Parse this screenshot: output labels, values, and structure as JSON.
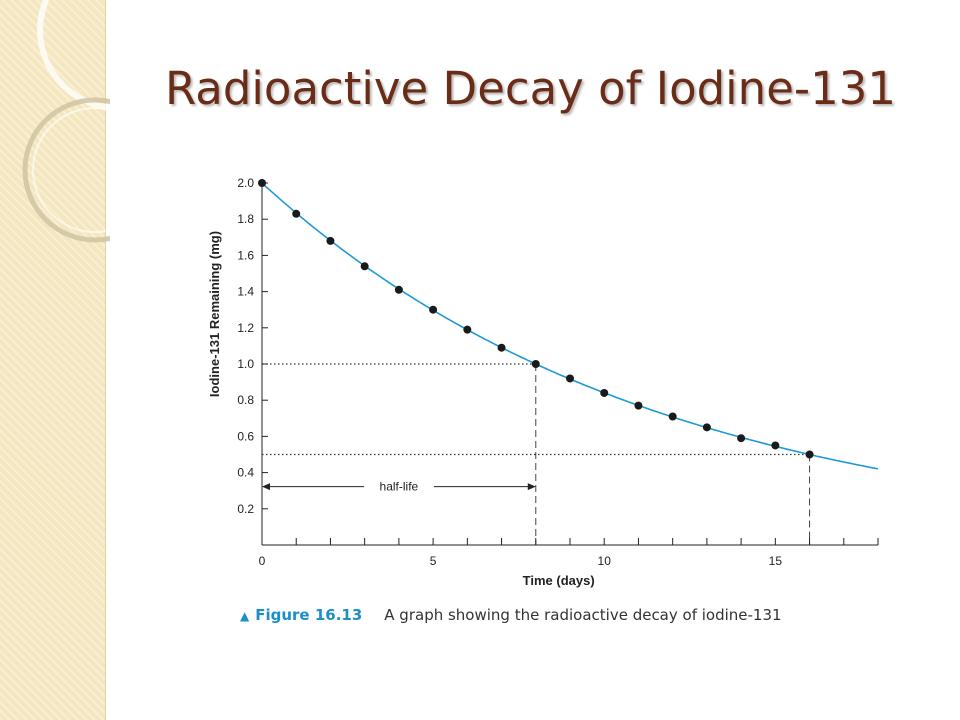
{
  "slide": {
    "title": "Radioactive Decay of Iodine-131",
    "accent_color": "#6b2c17",
    "side_panel_color": "#f4e7bf"
  },
  "chart_data": {
    "type": "scatter",
    "title": "",
    "xlabel": "Time (days)",
    "ylabel": "Iodine-131 Remaining (mg)",
    "xlim": [
      0,
      18
    ],
    "ylim": [
      0,
      2.0
    ],
    "x_ticks_labeled": [
      0,
      5,
      10,
      15
    ],
    "x_tick_labels": [
      "0",
      "5",
      "10",
      "15"
    ],
    "y_ticks": [
      0.2,
      0.4,
      0.6,
      0.8,
      1.0,
      1.2,
      1.4,
      1.6,
      1.8,
      2.0
    ],
    "y_tick_labels": [
      "0.2",
      "0.4",
      "0.6",
      "0.8",
      "1.0",
      "1.2",
      "1.4",
      "1.6",
      "1.8",
      "2.0"
    ],
    "grid": false,
    "series": [
      {
        "x": [
          0,
          1,
          2,
          3,
          4,
          5,
          6,
          7,
          8,
          9,
          10,
          11,
          12,
          13,
          14,
          15,
          16
        ],
        "y": [
          2.0,
          1.83,
          1.68,
          1.54,
          1.41,
          1.3,
          1.19,
          1.09,
          1.0,
          0.92,
          0.84,
          0.77,
          0.71,
          0.65,
          0.59,
          0.55,
          0.5
        ],
        "marker_color": "#1a1a1a"
      }
    ],
    "curve": {
      "type": "exponential_decay",
      "initial": 2.0,
      "half_life": 8,
      "x_range": [
        0,
        18
      ],
      "color": "#1b9ad6"
    },
    "reference_lines": [
      {
        "y": 1.0,
        "x": 8,
        "style": "dotted-horizontal-dashed-vertical"
      },
      {
        "y": 0.5,
        "x": 16,
        "style": "dotted-horizontal-dashed-vertical"
      }
    ],
    "annotations": [
      {
        "text": "half-life",
        "x_from": 0,
        "x_to": 8,
        "y": 0.4
      }
    ]
  },
  "caption": {
    "marker": "▲",
    "label": "Figure 16.13",
    "text": "A graph showing the radioactive decay of iodine-131",
    "label_color": "#1b8fc7"
  }
}
